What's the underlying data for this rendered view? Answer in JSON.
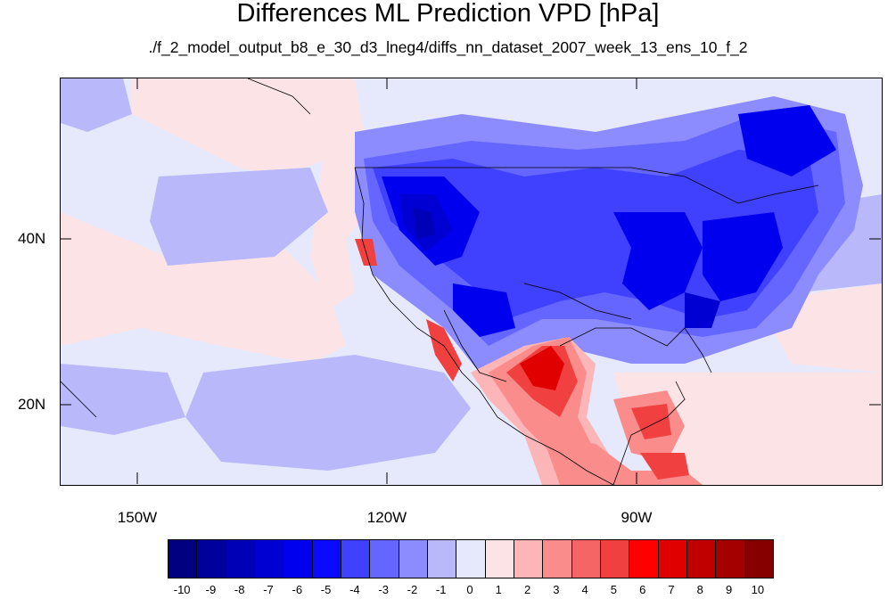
{
  "title": "Differences ML Prediction VPD [hPa]",
  "subtitle": "./f_2_model_output_b8_e_30_d3_lneg4/diffs_nn_dataset_2007_week_13_ens_10_f_2",
  "map": {
    "y_axis_labels": [
      "40N",
      "20N"
    ],
    "x_axis_labels": [
      "150W",
      "120W",
      "90W"
    ],
    "background_level": "-1",
    "projection": "cylindrical equidistant",
    "extent": {
      "lon_min": -159,
      "lon_max": -61,
      "lat_min": 11,
      "lat_max": 60
    }
  },
  "colorbar": {
    "labels": [
      "-10",
      "-9",
      "-8",
      "-7",
      "-6",
      "-5",
      "-4",
      "-3",
      "-2",
      "-1",
      "0",
      "1",
      "2",
      "3",
      "4",
      "5",
      "6",
      "7",
      "8",
      "9",
      "10"
    ],
    "colors": [
      "#000080",
      "#00009b",
      "#0000b7",
      "#0000d3",
      "#0000ee",
      "#0a0aff",
      "#4040ff",
      "#6565ff",
      "#8c8cff",
      "#b8b8fb",
      "#e6e8fb",
      "#fce4e6",
      "#fcb6b8",
      "#fa8c8c",
      "#f66565",
      "#f04040",
      "#ff0000",
      "#e00000",
      "#c00000",
      "#a40000",
      "#860000"
    ]
  }
}
